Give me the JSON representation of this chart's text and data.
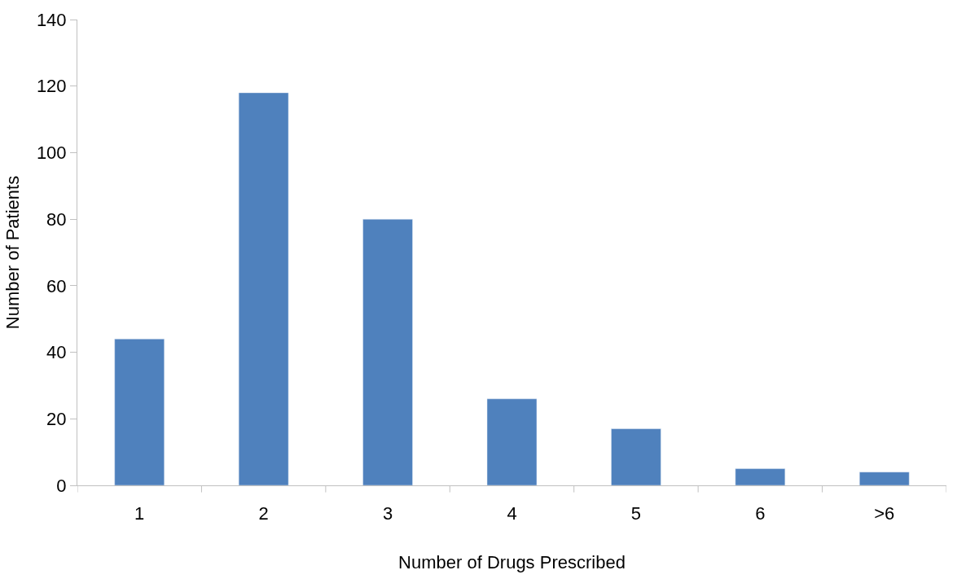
{
  "chart_data": {
    "type": "bar",
    "xlabel": "Number of Drugs Prescribed",
    "ylabel": "Number of Patients",
    "categories": [
      "1",
      "2",
      "3",
      "4",
      "5",
      "6",
      ">6"
    ],
    "values": [
      44,
      118,
      80,
      26,
      17,
      5,
      4
    ],
    "color": "#4f81bd",
    "ylim": [
      0,
      140
    ],
    "yticks": [
      0,
      20,
      40,
      60,
      80,
      100,
      120,
      140
    ]
  }
}
